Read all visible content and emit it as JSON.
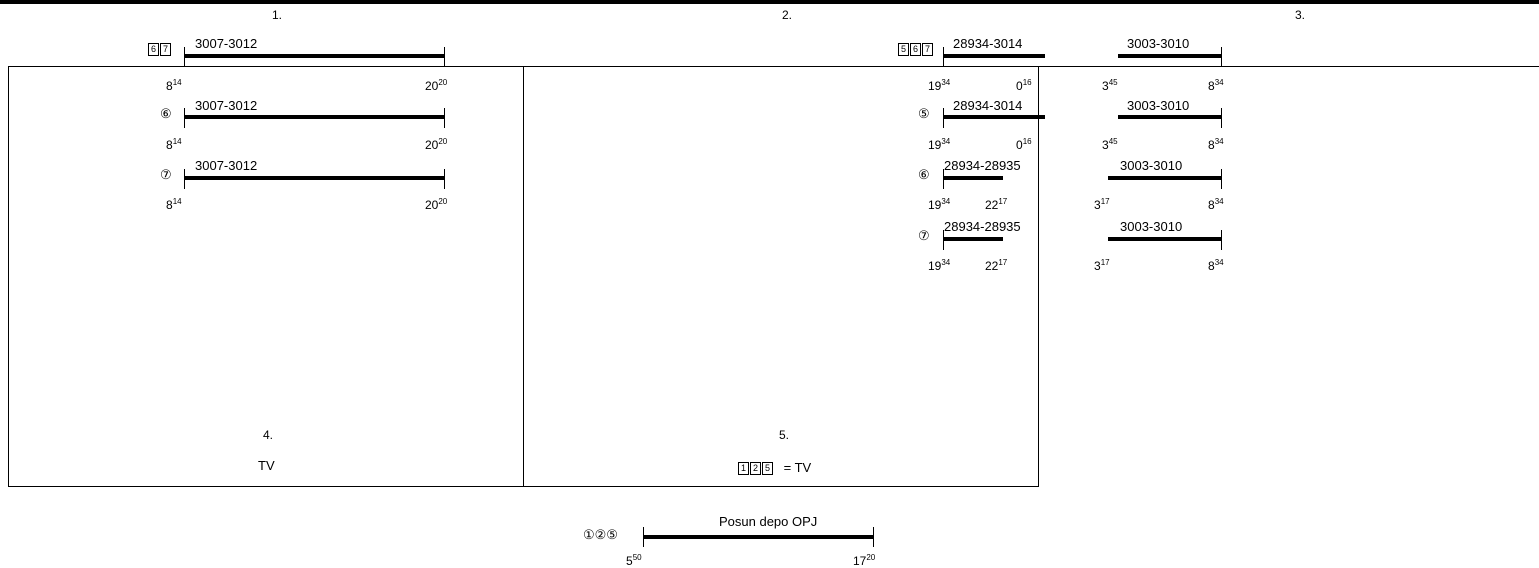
{
  "column_numbers": [
    "1.",
    "2.",
    "3.",
    "4.",
    "5."
  ],
  "column1": {
    "rows": [
      {
        "marker": "67",
        "route": "3007-3012",
        "start": {
          "h": "8",
          "m": "14"
        },
        "end": {
          "h": "20",
          "m": "20"
        }
      },
      {
        "marker": "⑥",
        "route": "3007-3012",
        "start": {
          "h": "8",
          "m": "14"
        },
        "end": {
          "h": "20",
          "m": "20"
        }
      },
      {
        "marker": "⑦",
        "route": "3007-3012",
        "start": {
          "h": "8",
          "m": "14"
        },
        "end": {
          "h": "20",
          "m": "20"
        }
      }
    ]
  },
  "column2": {
    "rows": [
      {
        "marker": "567",
        "route": "28934-3014",
        "start": {
          "h": "19",
          "m": "34"
        },
        "end": {
          "h": "0",
          "m": "16"
        }
      },
      {
        "marker": "⑤",
        "route": "28934-3014",
        "start": {
          "h": "19",
          "m": "34"
        },
        "end": {
          "h": "0",
          "m": "16"
        }
      },
      {
        "marker": "⑥",
        "route": "28934-28935",
        "start": {
          "h": "19",
          "m": "34"
        },
        "end": {
          "h": "22",
          "m": "17"
        }
      },
      {
        "marker": "⑦",
        "route": "28934-28935",
        "start": {
          "h": "19",
          "m": "34"
        },
        "end": {
          "h": "22",
          "m": "17"
        }
      }
    ]
  },
  "column3": {
    "rows": [
      {
        "route": "3003-3010",
        "start": {
          "h": "3",
          "m": "45"
        },
        "end": {
          "h": "8",
          "m": "34"
        }
      },
      {
        "route": "3003-3010",
        "start": {
          "h": "3",
          "m": "45"
        },
        "end": {
          "h": "8",
          "m": "34"
        }
      },
      {
        "route": "3003-3010",
        "start": {
          "h": "3",
          "m": "17"
        },
        "end": {
          "h": "8",
          "m": "34"
        }
      },
      {
        "route": "3003-3010",
        "start": {
          "h": "3",
          "m": "17"
        },
        "end": {
          "h": "8",
          "m": "34"
        }
      }
    ]
  },
  "box4": {
    "label": "TV"
  },
  "box5": {
    "marker": "125",
    "label": "= TV"
  },
  "bottom": {
    "marker": "①②⑤",
    "route": "Posun depo OPJ",
    "start": {
      "h": "5",
      "m": "50"
    },
    "end": {
      "h": "17",
      "m": "20"
    }
  }
}
